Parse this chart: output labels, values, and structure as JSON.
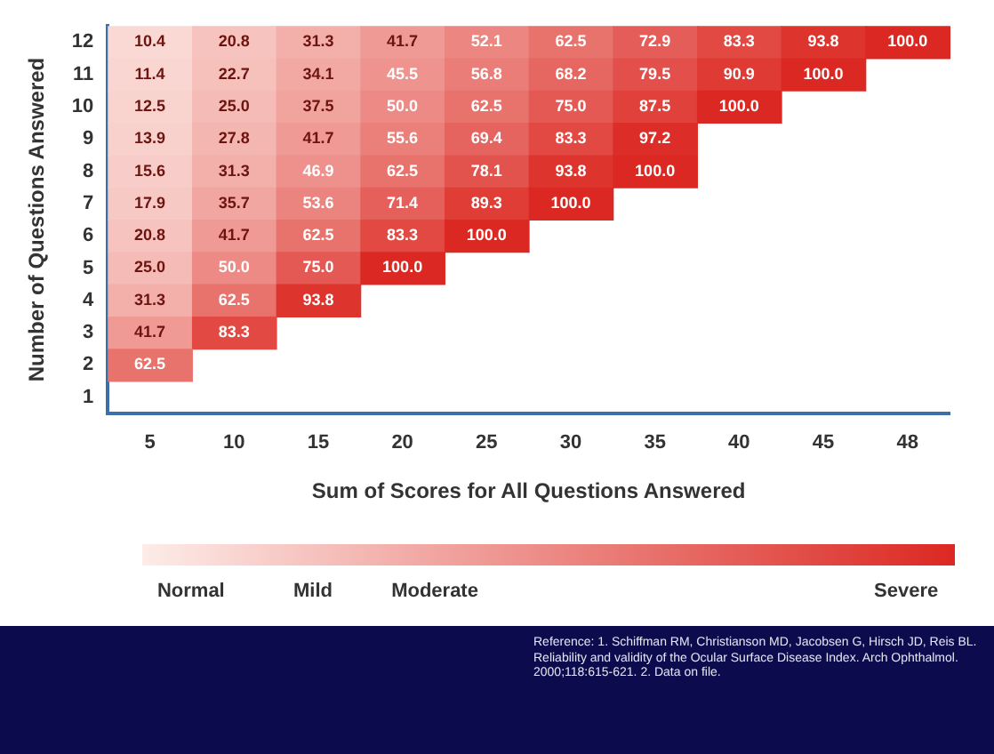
{
  "chart_data": {
    "type": "heatmap",
    "xlabel": "Sum of Scores for All Questions Answered",
    "ylabel": "Number of Questions Answered",
    "categories": [
      "5",
      "10",
      "15",
      "20",
      "25",
      "30",
      "35",
      "40",
      "45",
      "48"
    ],
    "y_categories": [
      "12",
      "11",
      "10",
      "9",
      "8",
      "7",
      "6",
      "5",
      "4",
      "3",
      "2",
      "1"
    ],
    "cells": [
      [
        10.4,
        20.8,
        31.3,
        41.7,
        52.1,
        62.5,
        72.9,
        83.3,
        93.8,
        100.0
      ],
      [
        11.4,
        22.7,
        34.1,
        45.5,
        56.8,
        68.2,
        79.5,
        90.9,
        100.0,
        null
      ],
      [
        12.5,
        25.0,
        37.5,
        50.0,
        62.5,
        75.0,
        87.5,
        100.0,
        null,
        null
      ],
      [
        13.9,
        27.8,
        41.7,
        55.6,
        69.4,
        83.3,
        97.2,
        null,
        null,
        null
      ],
      [
        15.6,
        31.3,
        46.9,
        62.5,
        78.1,
        93.8,
        100.0,
        null,
        null,
        null
      ],
      [
        17.9,
        35.7,
        53.6,
        71.4,
        89.3,
        100.0,
        null,
        null,
        null,
        null
      ],
      [
        20.8,
        41.7,
        62.5,
        83.3,
        100.0,
        null,
        null,
        null,
        null,
        null
      ],
      [
        25.0,
        50.0,
        75.0,
        100.0,
        null,
        null,
        null,
        null,
        null,
        null
      ],
      [
        31.3,
        62.5,
        93.8,
        null,
        null,
        null,
        null,
        null,
        null,
        null
      ],
      [
        41.7,
        83.3,
        null,
        null,
        null,
        null,
        null,
        null,
        null,
        null
      ],
      [
        62.5,
        null,
        null,
        null,
        null,
        null,
        null,
        null,
        null,
        null
      ],
      [
        null,
        null,
        null,
        null,
        null,
        null,
        null,
        null,
        null,
        null
      ]
    ],
    "cell_labels": [
      [
        "10.4",
        "20.8",
        "31.3",
        "41.7",
        "52.1",
        "62.5",
        "72.9",
        "83.3",
        "93.8",
        "100.0"
      ],
      [
        "11.4",
        "22.7",
        "34.1",
        "45.5",
        "56.8",
        "68.2",
        "79.5",
        "90.9",
        "100.0",
        null
      ],
      [
        "12.5",
        "25.0",
        "37.5",
        "50.0",
        "62.5",
        "75.0",
        "87.5",
        "100.0",
        null,
        null
      ],
      [
        "13.9",
        "27.8",
        "41.7",
        "55.6",
        "69.4",
        "83.3",
        "97.2",
        null,
        null,
        null
      ],
      [
        "15.6",
        "31.3",
        "46.9",
        "62.5",
        "78.1",
        "93.8",
        "100.0",
        null,
        null,
        null
      ],
      [
        "17.9",
        "35.7",
        "53.6",
        "71.4",
        "89.3",
        "100.0",
        null,
        null,
        null,
        null
      ],
      [
        "20.8",
        "41.7",
        "62.5",
        "83.3",
        "100.0",
        null,
        null,
        null,
        null,
        null
      ],
      [
        "25.0",
        "50.0",
        "75.0",
        "100.0",
        null,
        null,
        null,
        null,
        null,
        null
      ],
      [
        "31.3",
        "62.5",
        "93.8",
        null,
        null,
        null,
        null,
        null,
        null,
        null
      ],
      [
        "41.7",
        "83.3",
        null,
        null,
        null,
        null,
        null,
        null,
        null,
        null
      ],
      [
        "62.5",
        null,
        null,
        null,
        null,
        null,
        null,
        null,
        null,
        null
      ],
      [
        null,
        null,
        null,
        null,
        null,
        null,
        null,
        null,
        null,
        null
      ]
    ],
    "clim": [
      0,
      100
    ],
    "cticks": [
      {
        "value": 6,
        "label": "Normal"
      },
      {
        "value": 21,
        "label": "Mild"
      },
      {
        "value": 36,
        "label": "Moderate"
      },
      {
        "value": 94,
        "label": "Severe"
      }
    ],
    "annotations": [
      "Reference: 1. Schiffman RM, Christianson MD, Jacobsen G, Hirsch JD, Reis BL. Reliability and validity of the Ocular Surface Disease Index. Arch Ophthalmol. 2000;118:615-621. 2. Data on file."
    ]
  }
}
